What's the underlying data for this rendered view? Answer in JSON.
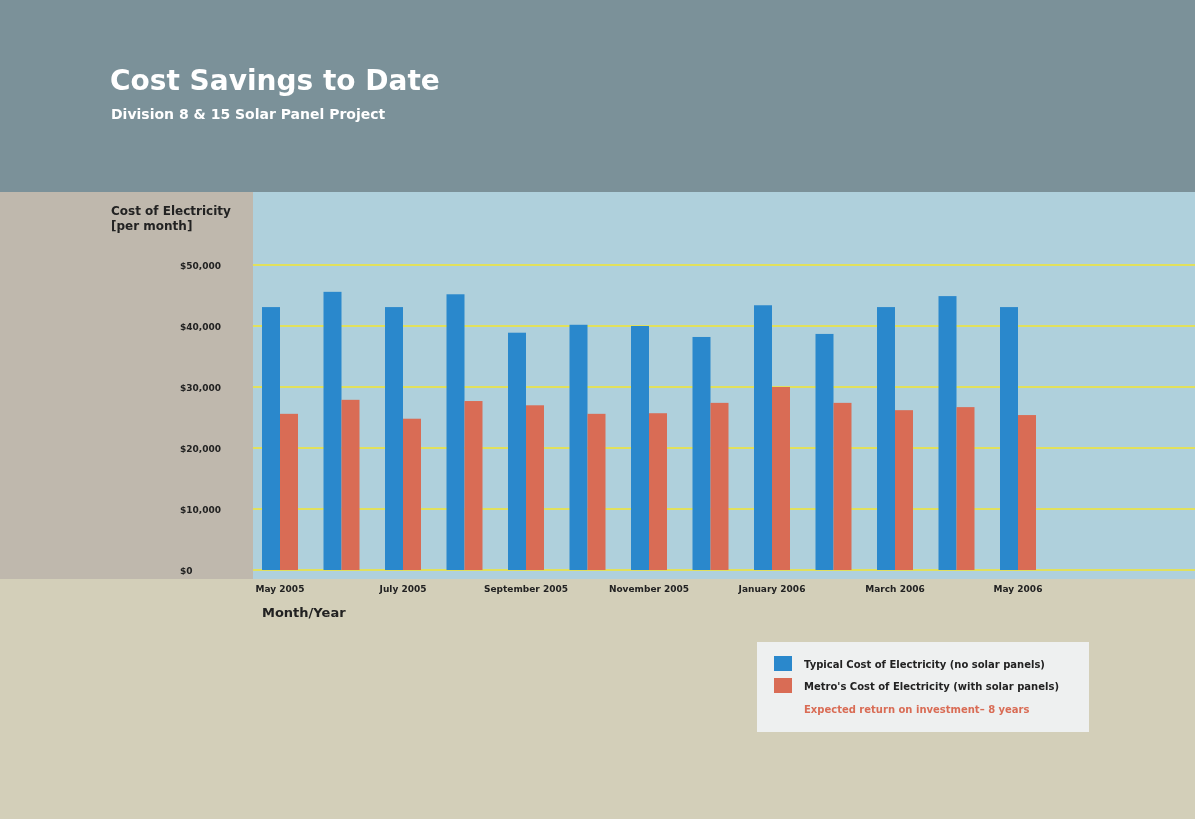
{
  "chart_data": {
    "type": "bar",
    "title": "Cost Savings to Date",
    "subtitle": "Division 8 & 15 Solar Panel Project",
    "xlabel": "Month/Year",
    "ylabel": "Cost of Electricity\n[per month]",
    "categories": [
      "May 2005",
      null,
      "July 2005",
      null,
      "September 2005",
      null,
      "November 2005",
      null,
      "January 2006",
      null,
      "March 2006",
      null,
      "May 2006"
    ],
    "series": [
      {
        "name": "Typical Cost of Electricity (no solar panels)",
        "color": "#2a88cc",
        "values": [
          43100,
          45600,
          43100,
          45200,
          38900,
          40200,
          40000,
          38200,
          43400,
          38700,
          43100,
          44900,
          43100
        ]
      },
      {
        "name": "Metro's Cost of Electricity (with solar panels)",
        "color": "#d96c55",
        "values": [
          25600,
          27900,
          24800,
          27700,
          27000,
          25600,
          25700,
          27400,
          30000,
          27400,
          26200,
          26700,
          25400
        ]
      }
    ],
    "ylim": [
      0,
      50000
    ],
    "yticks": [
      {
        "value": 0,
        "label": "$0"
      },
      {
        "value": 10000,
        "label": "$10,000"
      },
      {
        "value": 20000,
        "label": "$20,000"
      },
      {
        "value": 30000,
        "label": "$30,000"
      },
      {
        "value": 40000,
        "label": "$40,000"
      },
      {
        "value": 50000,
        "label": "$50,000"
      }
    ],
    "grid": "y",
    "legend": "bottom right",
    "annotations": [
      "Expected return on investment– 8 years"
    ]
  }
}
